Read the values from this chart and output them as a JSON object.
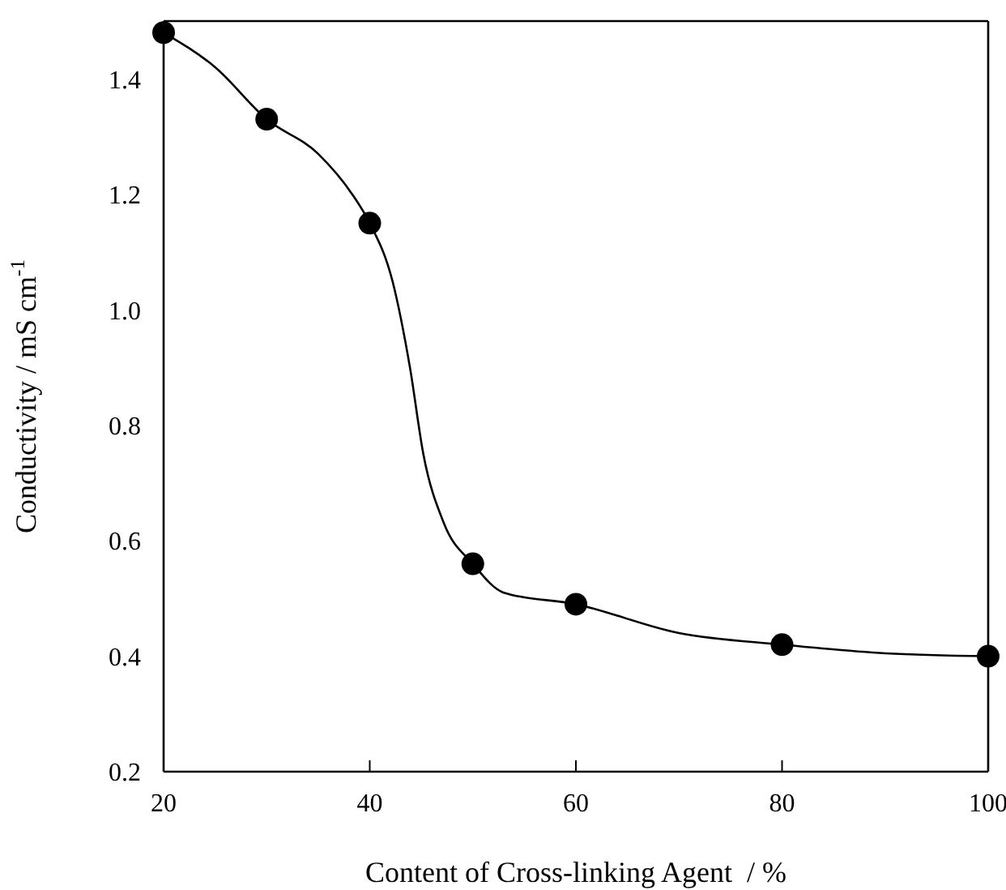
{
  "chart_data": {
    "type": "scatter",
    "xlabel": "Content of Cross-linking Agent  / %",
    "ylabel": "Conductivity / mS cm$^{-1}$",
    "xlim": [
      20,
      100
    ],
    "xticks": [
      20,
      40,
      60,
      80,
      100
    ],
    "ylim": [
      0.2,
      1.5
    ],
    "yticks": [
      0.2,
      0.4,
      0.6,
      0.8,
      {
        "value": 1,
        "label": "1.0"
      },
      1.2,
      1.4
    ],
    "series": [
      {
        "color": "#000000",
        "marker": "circle",
        "x": [
          20,
          30,
          40,
          50,
          60,
          80,
          100
        ],
        "values": [
          1.48,
          1.33,
          1.15,
          0.56,
          0.49,
          0.42,
          0.4
        ]
      },
      {
        "type": "line",
        "color": "#000000",
        "marker": "none",
        "line_style": "solid",
        "x": [
          20,
          25,
          30,
          35,
          38.3,
          40,
          42.2,
          43.9,
          45.2,
          47.2,
          50,
          53,
          60,
          70,
          80,
          90,
          100
        ],
        "values": [
          1.48,
          1.42,
          1.33,
          1.27,
          1.2,
          1.15,
          1.05,
          0.9,
          0.75,
          0.63,
          0.56,
          0.51,
          0.49,
          0.44,
          0.42,
          0.405,
          0.4
        ]
      }
    ]
  }
}
